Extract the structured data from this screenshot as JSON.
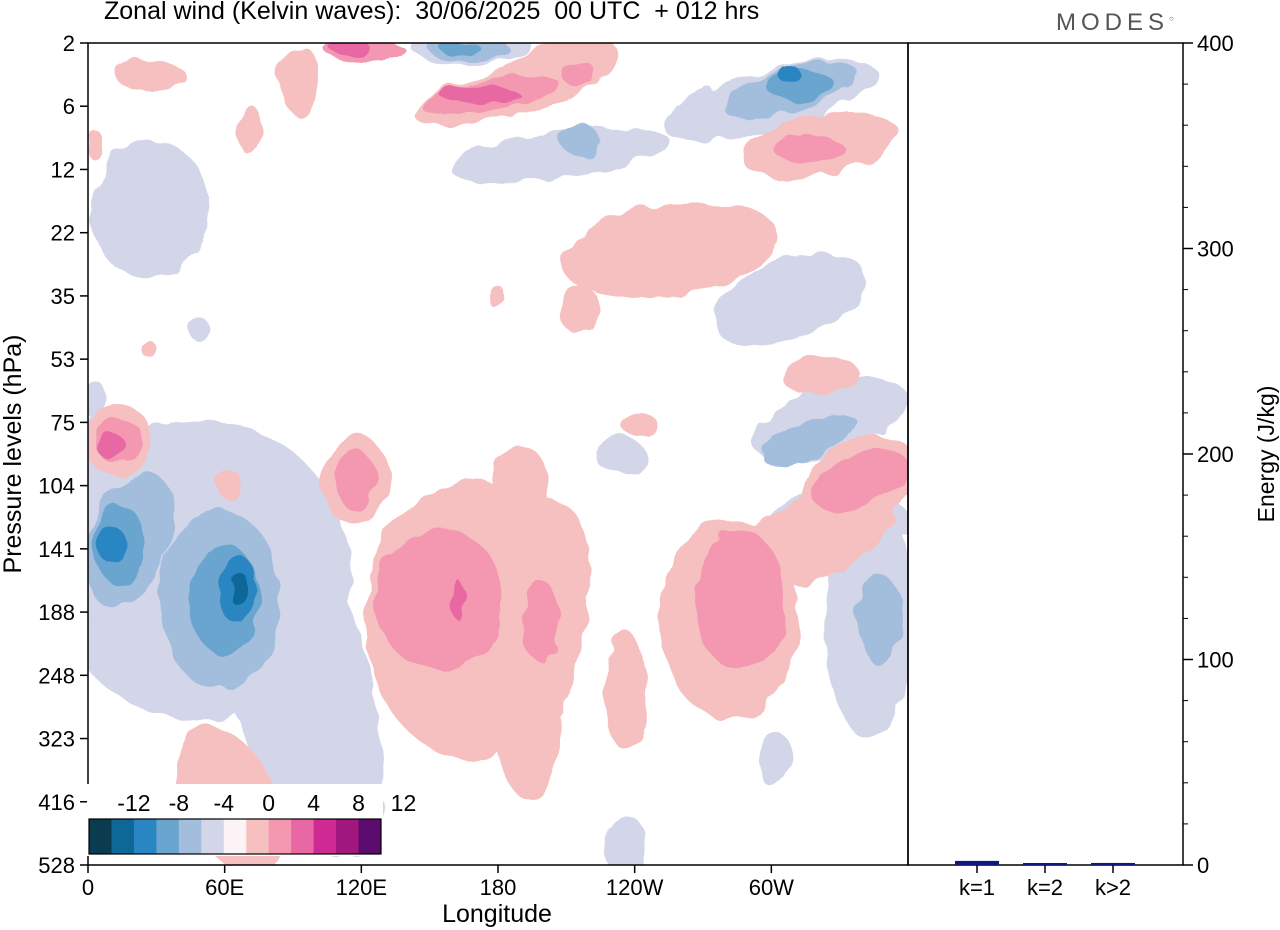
{
  "title": "Zonal wind (Kelvin waves):  30/06/2025  00 UTC  + 012 hrs",
  "logo": "MODES",
  "chart_data": [
    {
      "type": "heatmap",
      "xlabel": "Longitude",
      "ylabel": "Pressure levels (hPa)",
      "x_ticks": [
        "0",
        "60E",
        "120E",
        "180",
        "120W",
        "60W"
      ],
      "y_ticks": [
        "2",
        "6",
        "12",
        "22",
        "35",
        "53",
        "75",
        "104",
        "141",
        "188",
        "248",
        "323",
        "416",
        "528"
      ],
      "colorbar": {
        "tick_labels": [
          "-12",
          "-8",
          "-4",
          "0",
          "4",
          "8",
          "12"
        ],
        "colors": [
          "#0b3b4f",
          "#0d6797",
          "#2a86c2",
          "#69a5cf",
          "#a3bedc",
          "#d3d5e8",
          "#fcf3f6",
          "#f6c0c0",
          "#f497b1",
          "#e868a3",
          "#cf2a93",
          "#a0177e",
          "#5c0c6f"
        ]
      },
      "cells": [
        {
          "lon": 15,
          "p": 141,
          "value": -12
        },
        {
          "lon": 28,
          "p": 104,
          "value": -8
        },
        {
          "lon": 50,
          "p": 188,
          "value": -8
        },
        {
          "lon": 52,
          "p": 160,
          "value": -12
        },
        {
          "lon": 5,
          "p": 85,
          "value": 8
        },
        {
          "lon": 118,
          "p": 100,
          "value": 8
        },
        {
          "lon": 158,
          "p": 188,
          "value": 8
        },
        {
          "lon": 175,
          "p": 200,
          "value": 4
        },
        {
          "lon": 285,
          "p": 188,
          "value": 8
        },
        {
          "lon": 340,
          "p": 104,
          "value": 8
        },
        {
          "lon": 340,
          "p": 190,
          "value": -8
        },
        {
          "lon": 322,
          "p": 85,
          "value": -8
        },
        {
          "lon": 185,
          "p": 5,
          "value": 8
        },
        {
          "lon": 120,
          "p": 2,
          "value": 12
        },
        {
          "lon": 170,
          "p": 2,
          "value": -8
        },
        {
          "lon": 315,
          "p": 5,
          "value": -12
        },
        {
          "lon": 322,
          "p": 11,
          "value": 8
        },
        {
          "lon": 230,
          "p": 24,
          "value": 4
        },
        {
          "lon": 90,
          "p": 350,
          "value": 4
        },
        {
          "lon": 30,
          "p": 20,
          "value": -4
        }
      ]
    },
    {
      "type": "bar",
      "ylabel": "Energy (J/kg)",
      "categories": [
        "k=1",
        "k=2",
        "k>2"
      ],
      "values": [
        2,
        0.5,
        1
      ],
      "ylim": [
        0,
        400
      ],
      "y_ticks": [
        "0",
        "100",
        "200",
        "300",
        "400"
      ],
      "bar_color": "#0d1880"
    }
  ]
}
